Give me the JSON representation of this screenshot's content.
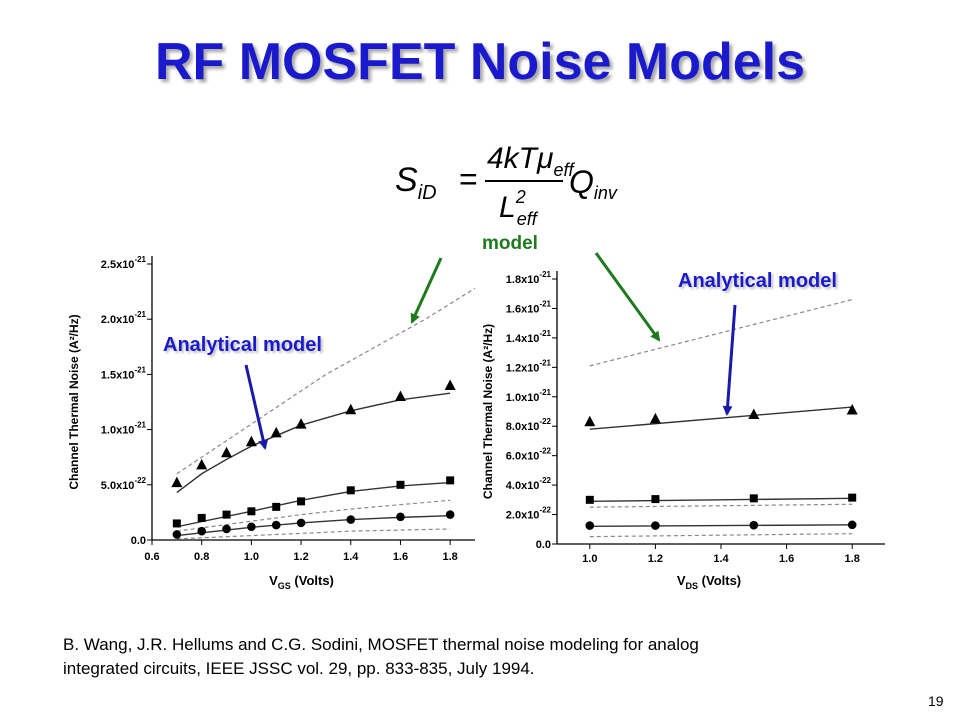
{
  "slide": {
    "title": "RF MOSFET Noise Models",
    "page_number": "19",
    "formula": {
      "lhs_main": "S",
      "lhs_sub": "iD",
      "num_prefix": "4kTμ",
      "num_sub": "eff",
      "den_main": "L",
      "den_sup": "2",
      "den_sub": "eff",
      "rhs_main": "Q",
      "rhs_sub": "inv"
    },
    "green_callout": "model",
    "left_callout": "Analytical model",
    "right_callout": "Analytical model",
    "citation_line1": "B. Wang, J.R. Hellums and C.G. Sodini, MOSFET thermal noise modeling for analog",
    "citation_line2": "integrated circuits, IEEE JSSC vol. 29, pp. 833-835, July 1994.",
    "colors": {
      "title": "#1a1acc",
      "callout_blue": "#1a1acc",
      "arrow_blue": "#1a1aaa",
      "arrow_green": "#1f7a1f"
    }
  },
  "chart_data": [
    {
      "type": "scatter",
      "ylabel": "Channel Thermal Noise (A²/Hz)",
      "xlabel_main": "V",
      "xlabel_sub": "GS",
      "xlabel_tail": " (Volts)",
      "xlim": [
        0.6,
        1.9
      ],
      "ylim": [
        0,
        2.5e-21
      ],
      "xticks": [
        "0.6",
        "0.8",
        "1.0",
        "1.2",
        "1.4",
        "1.6",
        "1.8"
      ],
      "xtick_values": [
        0.6,
        0.8,
        1.0,
        1.2,
        1.4,
        1.6,
        1.8
      ],
      "ytick_values": [
        0,
        5e-22,
        1e-21,
        1.5e-21,
        2e-21,
        2.5e-21
      ],
      "ytick_labels": [
        {
          "mant": "0.0",
          "exp": ""
        },
        {
          "mant": "5.0x10",
          "exp": "-22"
        },
        {
          "mant": "1.0x10",
          "exp": "-21"
        },
        {
          "mant": "1.5x10",
          "exp": "-21"
        },
        {
          "mant": "2.0x10",
          "exp": "-21"
        },
        {
          "mant": "2.5x10",
          "exp": "-21"
        }
      ],
      "series": [
        {
          "marker": "triangle",
          "x": [
            0.7,
            0.8,
            0.9,
            1.0,
            1.1,
            1.2,
            1.4,
            1.6,
            1.8
          ],
          "y": [
            5.2e-22,
            6.8e-22,
            7.9e-22,
            8.9e-22,
            9.7e-22,
            1.05e-21,
            1.18e-21,
            1.3e-21,
            1.4e-21
          ]
        },
        {
          "marker": "square",
          "x": [
            0.7,
            0.8,
            0.9,
            1.0,
            1.1,
            1.2,
            1.4,
            1.6,
            1.8
          ],
          "y": [
            1.5e-22,
            2e-22,
            2.3e-22,
            2.6e-22,
            3e-22,
            3.5e-22,
            4.5e-22,
            5e-22,
            5.4e-22
          ]
        },
        {
          "marker": "circle",
          "x": [
            0.7,
            0.8,
            0.9,
            1.0,
            1.1,
            1.2,
            1.4,
            1.6,
            1.8
          ],
          "y": [
            5e-23,
            8e-23,
            1e-22,
            1.2e-22,
            1.35e-22,
            1.55e-22,
            1.85e-22,
            2.1e-22,
            2.3e-22
          ]
        }
      ],
      "fit_lines": [
        {
          "x": [
            0.7,
            0.8,
            0.9,
            1.0,
            1.2,
            1.4,
            1.6,
            1.8
          ],
          "y": [
            4.3e-22,
            6e-22,
            7.3e-22,
            8.5e-22,
            1.04e-21,
            1.17e-21,
            1.27e-21,
            1.33e-21
          ]
        },
        {
          "x": [
            0.7,
            1.0,
            1.2,
            1.4,
            1.6,
            1.8
          ],
          "y": [
            1.2e-22,
            2.6e-22,
            3.6e-22,
            4.4e-22,
            4.9e-22,
            5.2e-22
          ]
        },
        {
          "x": [
            0.7,
            1.0,
            1.2,
            1.4,
            1.6,
            1.8
          ],
          "y": [
            4e-23,
            1.15e-22,
            1.55e-22,
            1.85e-22,
            2.05e-22,
            2.2e-22
          ]
        }
      ],
      "dashed_lines": [
        {
          "x": [
            0.7,
            0.9,
            1.1,
            1.3,
            1.5,
            1.7,
            1.9
          ],
          "y": [
            6e-22,
            9e-22,
            1.2e-21,
            1.5e-21,
            1.75e-21,
            2e-21,
            2.28e-21
          ]
        },
        {
          "x": [
            0.7,
            1.0,
            1.2,
            1.4,
            1.6,
            1.8
          ],
          "y": [
            8e-23,
            1.7e-22,
            2.3e-22,
            2.8e-22,
            3.2e-22,
            3.6e-22
          ]
        },
        {
          "x": [
            0.7,
            1.0,
            1.2,
            1.4,
            1.6,
            1.8
          ],
          "y": [
            1e-23,
            4e-23,
            6e-23,
            8e-23,
            9e-23,
            1e-22
          ]
        }
      ]
    },
    {
      "type": "scatter",
      "ylabel": "Channel Thermal Noise (A²/Hz)",
      "xlabel_main": "V",
      "xlabel_sub": "DS",
      "xlabel_tail": " (Volts)",
      "xlim": [
        0.9,
        1.9
      ],
      "ylim": [
        0,
        1.8e-21
      ],
      "xticks": [
        "1.0",
        "1.2",
        "1.4",
        "1.6",
        "1.8"
      ],
      "xtick_values": [
        1.0,
        1.2,
        1.4,
        1.6,
        1.8
      ],
      "ytick_values": [
        0,
        2e-22,
        4e-22,
        6e-22,
        8e-22,
        1e-21,
        1.2e-21,
        1.4e-21,
        1.6e-21,
        1.8e-21
      ],
      "ytick_labels": [
        {
          "mant": "0.0",
          "exp": ""
        },
        {
          "mant": "2.0x10",
          "exp": "-22"
        },
        {
          "mant": "4.0x10",
          "exp": "-22"
        },
        {
          "mant": "6.0x10",
          "exp": "-22"
        },
        {
          "mant": "8.0x10",
          "exp": "-22"
        },
        {
          "mant": "1.0x10",
          "exp": "-21"
        },
        {
          "mant": "1.2x10",
          "exp": "-21"
        },
        {
          "mant": "1.4x10",
          "exp": "-21"
        },
        {
          "mant": "1.6x10",
          "exp": "-21"
        },
        {
          "mant": "1.8x10",
          "exp": "-21"
        }
      ],
      "series": [
        {
          "marker": "triangle",
          "x": [
            1.0,
            1.2,
            1.5,
            1.8
          ],
          "y": [
            8.3e-22,
            8.5e-22,
            8.8e-22,
            9.1e-22
          ]
        },
        {
          "marker": "square",
          "x": [
            1.0,
            1.2,
            1.5,
            1.8
          ],
          "y": [
            3e-22,
            3.05e-22,
            3.1e-22,
            3.15e-22
          ]
        },
        {
          "marker": "circle",
          "x": [
            1.0,
            1.2,
            1.5,
            1.8
          ],
          "y": [
            1.25e-22,
            1.25e-22,
            1.28e-22,
            1.3e-22
          ]
        }
      ],
      "fit_lines": [
        {
          "x": [
            1.0,
            1.8
          ],
          "y": [
            7.8e-22,
            9.3e-22
          ]
        },
        {
          "x": [
            1.0,
            1.8
          ],
          "y": [
            2.9e-22,
            3.1e-22
          ]
        },
        {
          "x": [
            1.0,
            1.8
          ],
          "y": [
            1.2e-22,
            1.3e-22
          ]
        }
      ],
      "dashed_lines": [
        {
          "x": [
            1.0,
            1.8
          ],
          "y": [
            1.21e-21,
            1.66e-21
          ]
        },
        {
          "x": [
            1.0,
            1.8
          ],
          "y": [
            2.5e-22,
            2.7e-22
          ]
        },
        {
          "x": [
            1.0,
            1.8
          ],
          "y": [
            5e-23,
            7e-23
          ]
        }
      ]
    }
  ]
}
